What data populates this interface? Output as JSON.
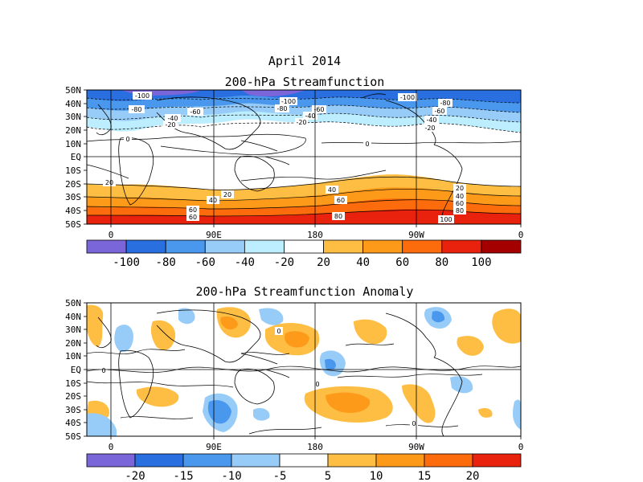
{
  "title": "April 2014",
  "panels": [
    {
      "id": "top",
      "title": "200-hPa Streamfunction",
      "lat_labels": [
        "50N",
        "40N",
        "30N",
        "20N",
        "10N",
        "EQ",
        "10S",
        "20S",
        "30S",
        "40S",
        "50S"
      ],
      "lon_labels": [
        "0",
        "90E",
        "180",
        "90W",
        "0"
      ],
      "colorbar": {
        "colors": [
          "#7b66d9",
          "#2a6fe0",
          "#4a98ee",
          "#98ccf8",
          "#bdeeff",
          "#ffffff",
          "#fdbe43",
          "#fe9a1a",
          "#fc6b0c",
          "#e8220c",
          "#a50000"
        ],
        "labels": [
          "-100",
          "-80",
          "-60",
          "-40",
          "-20",
          "20",
          "40",
          "60",
          "80",
          "100"
        ]
      },
      "contour_labels": [
        "-100",
        "-80",
        "-60",
        "-40",
        "-20",
        "0",
        "20",
        "40",
        "60",
        "80",
        "100"
      ]
    },
    {
      "id": "bottom",
      "title": "200-hPa Streamfunction Anomaly",
      "lat_labels": [
        "50N",
        "40N",
        "30N",
        "20N",
        "10N",
        "EQ",
        "10S",
        "20S",
        "30S",
        "40S",
        "50S"
      ],
      "lon_labels": [
        "0",
        "90E",
        "180",
        "90W",
        "0"
      ],
      "colorbar": {
        "colors": [
          "#7b66d9",
          "#2a6fe0",
          "#4a98ee",
          "#98ccf8",
          "#ffffff",
          "#fdbe43",
          "#fe9a1a",
          "#fc6b0c",
          "#e8220c"
        ],
        "labels": [
          "-20",
          "-15",
          "-10",
          "-5",
          "5",
          "10",
          "15",
          "20"
        ]
      },
      "contour_labels": [
        "0"
      ]
    }
  ]
}
